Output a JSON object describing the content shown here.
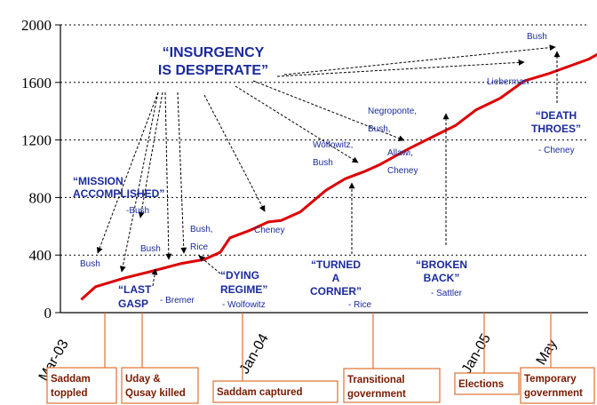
{
  "chart_data": {
    "type": "line",
    "ylim": [
      0,
      2000
    ],
    "yticks": [
      "0",
      "400",
      "800",
      "1200",
      "1600",
      "2000"
    ],
    "grid": true,
    "series": [
      {
        "color": "#dd0000",
        "points": [
          [
            0.13,
            90
          ],
          [
            0.22,
            180
          ],
          [
            0.4,
            240
          ],
          [
            0.58,
            290
          ],
          [
            0.75,
            340
          ],
          [
            0.9,
            370
          ],
          [
            1.0,
            420
          ],
          [
            1.06,
            520
          ],
          [
            1.18,
            570
          ],
          [
            1.3,
            630
          ],
          [
            1.38,
            640
          ],
          [
            1.5,
            700
          ],
          [
            1.66,
            850
          ],
          [
            1.78,
            930
          ],
          [
            1.9,
            980
          ],
          [
            2.0,
            1030
          ],
          [
            2.18,
            1140
          ],
          [
            2.36,
            1240
          ],
          [
            2.47,
            1300
          ],
          [
            2.6,
            1410
          ],
          [
            2.75,
            1490
          ],
          [
            2.9,
            1610
          ],
          [
            3.05,
            1660
          ],
          [
            3.2,
            1720
          ],
          [
            3.3,
            1760
          ],
          [
            3.45,
            1850
          ]
        ]
      }
    ],
    "x_tick_labels": [
      {
        "text": "Mar-03",
        "pos": 0
      },
      {
        "text": "Jan-04",
        "pos": 1.14
      },
      {
        "text": "Jan-05",
        "pos": 2.67
      },
      {
        "text": "May",
        "pos": 3.34
      }
    ],
    "quotes": [
      {
        "id": "insurgency",
        "lines": [
          "“INSURGENCY",
          "IS DESPERATE”"
        ]
      },
      {
        "id": "mission",
        "lines": [
          "“MISSION",
          "ACCOMPLISHED”"
        ]
      },
      {
        "id": "lastgasp",
        "lines": [
          "“LAST",
          "GASP"
        ]
      },
      {
        "id": "dying",
        "lines": [
          "“DYING",
          "REGIME”"
        ]
      },
      {
        "id": "turned",
        "lines": [
          "“TURNED",
          "A",
          "CORNER”"
        ]
      },
      {
        "id": "broken",
        "lines": [
          "“BROKEN",
          "BACK”"
        ]
      },
      {
        "id": "death",
        "lines": [
          "“DEATH",
          "THROES”"
        ]
      }
    ],
    "speakers": [
      {
        "id": "bush1",
        "text": "Bush"
      },
      {
        "id": "mission_bush",
        "text": "-Bush"
      },
      {
        "id": "bush2",
        "text": "Bush"
      },
      {
        "id": "bremer",
        "text": "- Bremer"
      },
      {
        "id": "bush_rice",
        "lines": [
          "Bush,",
          "Rice"
        ]
      },
      {
        "id": "wolfowitz",
        "text": "- Wolfowitz"
      },
      {
        "id": "cheney1",
        "text": "Cheney"
      },
      {
        "id": "rice",
        "text": "- Rice"
      },
      {
        "id": "wolfowitz_bush",
        "lines": [
          "Wolfowitz,",
          "Bush"
        ]
      },
      {
        "id": "negroponte",
        "lines": [
          "Negroponte,",
          "Bush,"
        ]
      },
      {
        "id": "allawi",
        "lines": [
          "Allawi,",
          "Cheney"
        ]
      },
      {
        "id": "sattler",
        "text": "- Sattler"
      },
      {
        "id": "lieberman",
        "text": "Lieberman"
      },
      {
        "id": "bush_top",
        "text": "Bush"
      },
      {
        "id": "cheney2",
        "text": "- Cheney"
      }
    ],
    "events": [
      {
        "id": "saddam_toppled",
        "lines": [
          "Saddam",
          "toppled"
        ]
      },
      {
        "id": "uday_qusay",
        "lines": [
          "Uday &",
          "Qusay killed"
        ]
      },
      {
        "id": "saddam_captured",
        "lines": [
          "Saddam captured"
        ]
      },
      {
        "id": "transitional",
        "lines": [
          "Transitional",
          "government"
        ]
      },
      {
        "id": "elections",
        "lines": [
          "Elections"
        ]
      },
      {
        "id": "temporary",
        "lines": [
          "Temporary",
          "government"
        ]
      }
    ]
  }
}
